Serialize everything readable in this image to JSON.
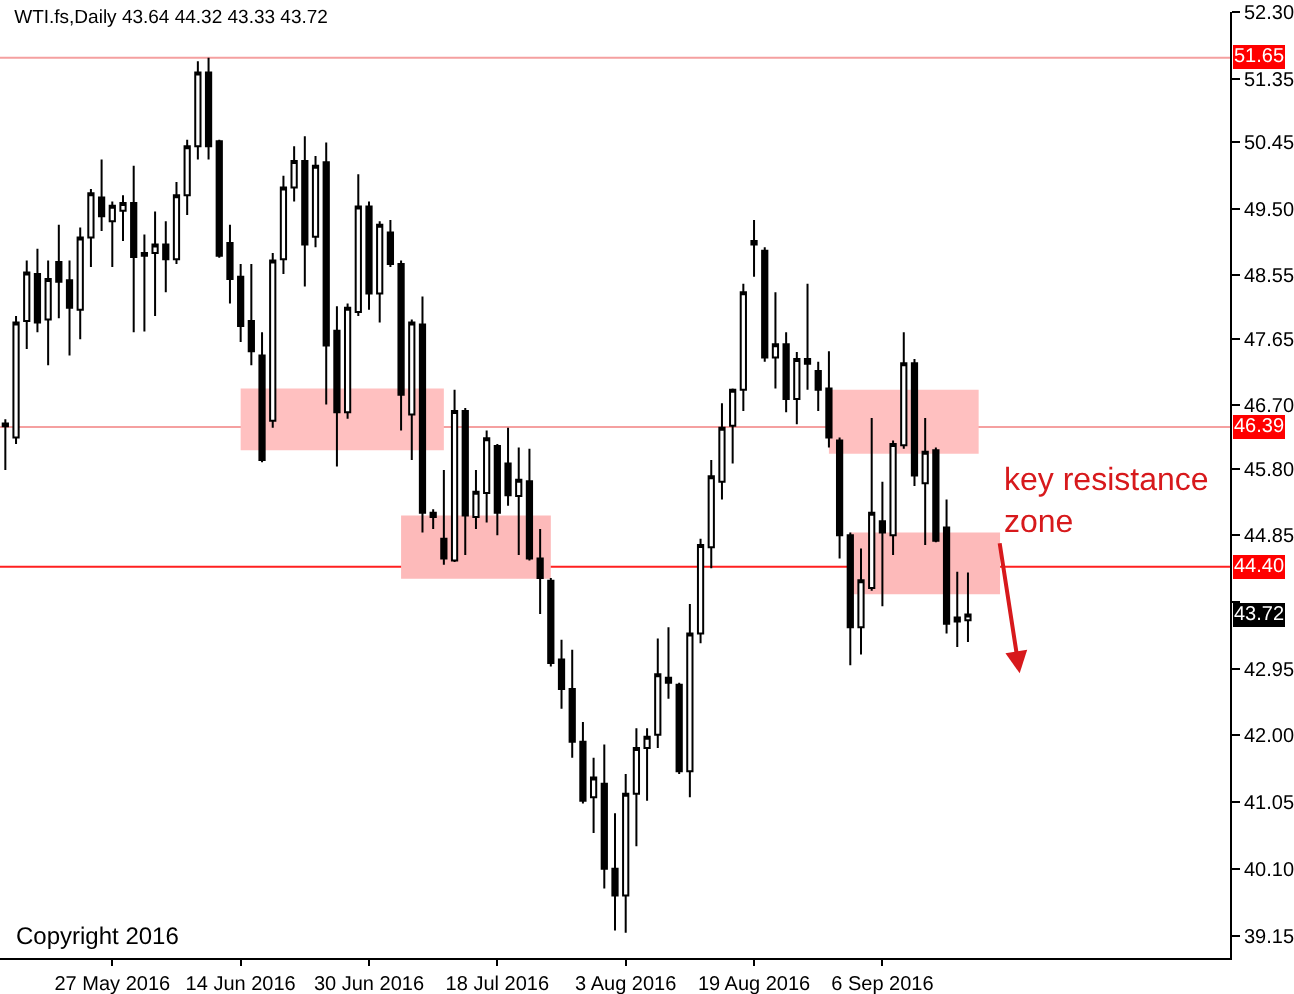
{
  "chart_data": {
    "type": "candlestick",
    "title": "WTI.fs,Daily 43.64 44.32 43.33 43.72",
    "categories": [
      null,
      null,
      null,
      null,
      null,
      null,
      null,
      null,
      null,
      null,
      "27 May 2016",
      null,
      null,
      null,
      null,
      null,
      null,
      null,
      null,
      null,
      null,
      null,
      "14 Jun 2016",
      null,
      null,
      null,
      null,
      null,
      null,
      null,
      null,
      null,
      null,
      null,
      "30 Jun 2016",
      null,
      null,
      null,
      null,
      null,
      null,
      null,
      null,
      null,
      null,
      null,
      "18 Jul 2016",
      null,
      null,
      null,
      null,
      null,
      null,
      null,
      null,
      null,
      null,
      null,
      "3 Aug 2016",
      null,
      null,
      null,
      null,
      null,
      null,
      null,
      null,
      null,
      null,
      null,
      "19 Aug 2016",
      null,
      null,
      null,
      null,
      null,
      null,
      null,
      null,
      null,
      null,
      null,
      "6 Sep 2016",
      null,
      null,
      null,
      null,
      null,
      null,
      null,
      null,
      null,
      null,
      null,
      null,
      null,
      null,
      null,
      null,
      null,
      null,
      null,
      null,
      null,
      null,
      null,
      null,
      null,
      null,
      null,
      null,
      null,
      null,
      null,
      null
    ],
    "ohlc": [
      [
        46.44,
        46.5,
        45.78,
        46.4
      ],
      [
        46.24,
        47.97,
        46.15,
        47.88
      ],
      [
        47.9,
        48.76,
        47.5,
        48.59
      ],
      [
        48.57,
        48.93,
        47.74,
        47.88
      ],
      [
        47.92,
        48.76,
        47.27,
        48.5
      ],
      [
        48.74,
        49.27,
        47.94,
        48.46
      ],
      [
        48.48,
        48.76,
        47.41,
        48.09
      ],
      [
        48.06,
        49.23,
        47.64,
        49.09
      ],
      [
        49.09,
        49.78,
        48.67,
        49.72
      ],
      [
        49.66,
        50.2,
        49.18,
        49.39
      ],
      [
        49.32,
        49.6,
        48.67,
        49.54
      ],
      [
        49.47,
        49.69,
        49.04,
        49.58
      ],
      [
        49.58,
        50.11,
        47.74,
        48.81
      ],
      [
        48.83,
        49.13,
        47.75,
        48.87
      ],
      [
        48.87,
        49.46,
        47.97,
        48.99
      ],
      [
        48.99,
        49.32,
        48.31,
        48.78
      ],
      [
        48.78,
        49.88,
        48.71,
        49.69
      ],
      [
        49.69,
        50.48,
        49.41,
        50.39
      ],
      [
        50.39,
        51.6,
        50.2,
        51.44
      ],
      [
        51.44,
        51.65,
        50.2,
        50.39
      ],
      [
        50.46,
        50.48,
        48.8,
        48.83
      ],
      [
        49.01,
        49.27,
        48.15,
        48.5
      ],
      [
        48.53,
        48.71,
        47.6,
        47.83
      ],
      [
        47.9,
        48.71,
        47.27,
        47.47
      ],
      [
        47.41,
        47.74,
        45.89,
        45.92
      ],
      [
        46.48,
        48.87,
        46.38,
        48.76
      ],
      [
        48.78,
        49.97,
        48.57,
        49.8
      ],
      [
        49.8,
        50.39,
        49.6,
        50.18
      ],
      [
        50.18,
        50.53,
        48.39,
        48.99
      ],
      [
        49.1,
        50.25,
        48.95,
        50.11
      ],
      [
        50.16,
        50.44,
        46.71,
        47.55
      ],
      [
        47.76,
        48.11,
        45.83,
        46.6
      ],
      [
        46.6,
        48.15,
        46.51,
        48.09
      ],
      [
        48.03,
        49.99,
        47.97,
        49.53
      ],
      [
        49.53,
        49.6,
        48.06,
        48.29
      ],
      [
        48.29,
        49.32,
        47.88,
        49.27
      ],
      [
        49.16,
        49.34,
        48.67,
        48.71
      ],
      [
        48.71,
        48.76,
        46.34,
        46.85
      ],
      [
        46.57,
        47.92,
        45.92,
        47.88
      ],
      [
        47.85,
        48.25,
        44.89,
        45.17
      ],
      [
        45.17,
        45.22,
        44.94,
        45.11
      ],
      [
        44.8,
        45.78,
        44.43,
        44.52
      ],
      [
        44.49,
        46.92,
        44.47,
        46.62
      ],
      [
        46.62,
        46.66,
        44.57,
        45.13
      ],
      [
        45.11,
        45.78,
        44.94,
        45.47
      ],
      [
        45.45,
        46.34,
        45.03,
        46.23
      ],
      [
        46.12,
        46.15,
        44.85,
        45.17
      ],
      [
        45.87,
        46.38,
        45.27,
        45.42
      ],
      [
        45.41,
        46.1,
        44.57,
        45.64
      ],
      [
        45.62,
        46.08,
        44.49,
        44.52
      ],
      [
        44.52,
        44.94,
        43.73,
        44.24
      ],
      [
        44.2,
        44.24,
        42.98,
        43.03
      ],
      [
        43.08,
        43.36,
        42.38,
        42.66
      ],
      [
        42.66,
        43.22,
        41.68,
        41.91
      ],
      [
        41.91,
        42.19,
        41.03,
        41.07
      ],
      [
        41.12,
        41.68,
        40.61,
        41.4
      ],
      [
        41.31,
        41.87,
        39.82,
        40.1
      ],
      [
        40.1,
        40.89,
        39.22,
        39.72
      ],
      [
        39.72,
        41.45,
        39.19,
        41.17
      ],
      [
        41.17,
        42.1,
        40.42,
        41.82
      ],
      [
        41.82,
        42.1,
        41.07,
        41.98
      ],
      [
        42.01,
        43.38,
        41.82,
        42.87
      ],
      [
        42.82,
        43.54,
        42.52,
        42.75
      ],
      [
        42.72,
        42.75,
        41.45,
        41.49
      ],
      [
        41.49,
        43.87,
        41.12,
        43.45
      ],
      [
        43.45,
        44.8,
        43.31,
        44.71
      ],
      [
        44.68,
        45.92,
        44.38,
        45.69
      ],
      [
        45.61,
        46.73,
        45.36,
        46.38
      ],
      [
        46.41,
        46.94,
        45.87,
        46.92
      ],
      [
        46.92,
        48.43,
        46.62,
        48.31
      ],
      [
        48.99,
        49.34,
        48.53,
        49.04
      ],
      [
        48.9,
        48.95,
        47.32,
        47.38
      ],
      [
        47.38,
        48.31,
        46.94,
        47.57
      ],
      [
        47.57,
        47.74,
        46.6,
        46.79
      ],
      [
        46.79,
        47.46,
        46.43,
        47.36
      ],
      [
        47.36,
        48.43,
        46.92,
        47.29
      ],
      [
        47.19,
        47.32,
        46.62,
        46.92
      ],
      [
        46.94,
        47.47,
        46.1,
        46.24
      ],
      [
        46.2,
        46.24,
        44.52,
        44.85
      ],
      [
        44.85,
        44.89,
        43.0,
        43.54
      ],
      [
        43.54,
        44.66,
        43.15,
        44.21
      ],
      [
        44.1,
        46.52,
        44.06,
        45.17
      ],
      [
        45.05,
        45.61,
        43.84,
        44.89
      ],
      [
        44.85,
        46.2,
        44.57,
        46.15
      ],
      [
        46.13,
        47.74,
        46.08,
        47.3
      ],
      [
        47.3,
        47.36,
        45.55,
        45.7
      ],
      [
        45.59,
        46.52,
        44.71,
        46.04
      ],
      [
        46.06,
        46.1,
        44.75,
        44.77
      ],
      [
        44.96,
        45.36,
        43.45,
        43.59
      ],
      [
        43.62,
        44.33,
        43.26,
        43.68
      ],
      [
        43.64,
        44.32,
        43.33,
        43.72
      ],
      null,
      null,
      null,
      null,
      null,
      null,
      null,
      null,
      null,
      null,
      null,
      null,
      null,
      null,
      null,
      null,
      null,
      null,
      null,
      null,
      null,
      null,
      null,
      null
    ],
    "series": [
      {
        "type": "line",
        "color": "#ffc0c0",
        "values": [
          null,
          null,
          null,
          null,
          null,
          null,
          null,
          null,
          null,
          null,
          null,
          null,
          null,
          null,
          null,
          null,
          null,
          null,
          null,
          null,
          null,
          null,
          null,
          null,
          null,
          null,
          null,
          null,
          null,
          null,
          null,
          null,
          null,
          null,
          null,
          null,
          null,
          null,
          null,
          null,
          null,
          null,
          null,
          null,
          null,
          null,
          null,
          null,
          null,
          null,
          null,
          null,
          null,
          null,
          null,
          null,
          null,
          null,
          null,
          null,
          null,
          null,
          null,
          null,
          null,
          null,
          null,
          null,
          null,
          null,
          null,
          null,
          null,
          null,
          null,
          null,
          null,
          null,
          null,
          null,
          null,
          null,
          null,
          null,
          null,
          null,
          null,
          null,
          null,
          null,
          null,
          null,
          null,
          null,
          null,
          null,
          null,
          null,
          null,
          null,
          null,
          null,
          null,
          null,
          null,
          null,
          null,
          null,
          null,
          null,
          null,
          null,
          null,
          null,
          null
        ],
        "lower": [
          null,
          null,
          null,
          null,
          null,
          null,
          null,
          null,
          null,
          null,
          null,
          null,
          null,
          null,
          null,
          null,
          null,
          null,
          null,
          null,
          null,
          null,
          46.06,
          46.06,
          46.06,
          46.06,
          46.06,
          46.06,
          46.06,
          46.06,
          46.06,
          46.06,
          46.06,
          46.06,
          46.06,
          46.06,
          46.06,
          46.06,
          46.06,
          46.06,
          46.06,
          46.06,
          null,
          null,
          null,
          null,
          null,
          null,
          null,
          null,
          null,
          null,
          null,
          null,
          null,
          null,
          null,
          null,
          null,
          null,
          null,
          null,
          null,
          null,
          null,
          null,
          null,
          null,
          null,
          null,
          null,
          null,
          null,
          null,
          null,
          null,
          null,
          null,
          null,
          null,
          null,
          null,
          null,
          null,
          null,
          null,
          null,
          null,
          null,
          null,
          null,
          null,
          null,
          null,
          null,
          null,
          null,
          null,
          null,
          null,
          null,
          null,
          null,
          null,
          null,
          null,
          null,
          null,
          null,
          null,
          null,
          null,
          null,
          null,
          null
        ],
        "upper": [
          null,
          null,
          null,
          null,
          null,
          null,
          null,
          null,
          null,
          null,
          null,
          null,
          null,
          null,
          null,
          null,
          null,
          null,
          null,
          null,
          null,
          null,
          46.94,
          46.94,
          46.94,
          46.94,
          46.94,
          46.94,
          46.94,
          46.94,
          46.94,
          46.94,
          46.94,
          46.94,
          46.94,
          46.94,
          46.94,
          46.94,
          46.94,
          46.94,
          46.94,
          46.94,
          null,
          null,
          null,
          null,
          null,
          null,
          null,
          null,
          null,
          null,
          null,
          null,
          null,
          null,
          null,
          null,
          null,
          null,
          null,
          null,
          null,
          null,
          null,
          null,
          null,
          null,
          null,
          null,
          null,
          null,
          null,
          null,
          null,
          null,
          null,
          null,
          null,
          null,
          null,
          null,
          null,
          null,
          null,
          null,
          null,
          null,
          null,
          null,
          null,
          null,
          null,
          null,
          null,
          null,
          null,
          null,
          null,
          null,
          null,
          null,
          null,
          null,
          null,
          null,
          null,
          null,
          null,
          null,
          null,
          null,
          null,
          null,
          null
        ]
      },
      {
        "type": "line",
        "color": "#ffc0c0",
        "values": [
          null,
          null,
          null,
          null,
          null,
          null,
          null,
          null,
          null,
          null,
          null,
          null,
          null,
          null,
          null,
          null,
          null,
          null,
          null,
          null,
          null,
          null,
          null,
          null,
          null,
          null,
          null,
          null,
          null,
          null,
          null,
          null,
          null,
          null,
          null,
          null,
          null,
          null,
          null,
          null,
          null,
          null,
          null,
          null,
          null,
          null,
          null,
          null,
          null,
          null,
          null,
          null,
          null,
          null,
          null,
          null,
          null,
          null,
          null,
          null,
          null,
          null,
          null,
          null,
          null,
          null,
          null,
          null,
          null,
          null,
          null,
          null,
          null,
          null,
          null,
          null,
          null,
          null,
          null,
          null,
          null,
          null,
          null,
          null,
          null,
          null,
          null,
          null,
          null,
          null,
          null,
          null,
          null,
          null,
          null,
          null,
          null,
          null,
          null,
          null,
          null,
          null,
          null,
          null,
          null,
          null,
          null,
          null,
          null,
          null,
          null,
          null,
          null,
          null,
          null
        ],
        "lower": [
          null,
          null,
          null,
          null,
          null,
          null,
          null,
          null,
          null,
          null,
          null,
          null,
          null,
          null,
          null,
          null,
          null,
          null,
          null,
          null,
          null,
          null,
          null,
          null,
          null,
          null,
          null,
          null,
          null,
          null,
          null,
          null,
          null,
          null,
          null,
          null,
          null,
          null,
          null,
          null,
          null,
          null,
          null,
          null,
          null,
          null,
          null,
          null,
          null,
          null,
          null,
          null,
          null,
          null,
          null,
          null,
          null,
          null,
          null,
          null,
          null,
          null,
          null,
          null,
          null,
          null,
          null,
          null,
          null,
          null,
          null,
          null,
          null,
          null,
          null,
          null,
          null,
          46.01,
          46.01,
          46.01,
          46.01,
          46.01,
          46.01,
          46.01,
          46.01,
          46.01,
          46.01,
          46.01,
          46.01,
          46.01,
          46.01,
          46.01,
          null,
          null,
          null,
          null,
          null,
          null,
          null,
          null,
          null,
          null,
          null,
          null,
          null,
          null,
          null,
          null,
          null,
          null,
          null,
          null,
          null,
          null,
          null
        ],
        "upper": [
          null,
          null,
          null,
          null,
          null,
          null,
          null,
          null,
          null,
          null,
          null,
          null,
          null,
          null,
          null,
          null,
          null,
          null,
          null,
          null,
          null,
          null,
          null,
          null,
          null,
          null,
          null,
          null,
          null,
          null,
          null,
          null,
          null,
          null,
          null,
          null,
          null,
          null,
          null,
          null,
          null,
          null,
          null,
          null,
          null,
          null,
          null,
          null,
          null,
          null,
          null,
          null,
          null,
          null,
          null,
          null,
          null,
          null,
          null,
          null,
          null,
          null,
          null,
          null,
          null,
          null,
          null,
          null,
          null,
          null,
          null,
          null,
          null,
          null,
          null,
          null,
          null,
          46.92,
          46.92,
          46.92,
          46.92,
          46.92,
          46.92,
          46.92,
          46.92,
          46.92,
          46.92,
          46.92,
          46.92,
          46.92,
          46.92,
          46.92,
          null,
          null,
          null,
          null,
          null,
          null,
          null,
          null,
          null,
          null,
          null,
          null,
          null,
          null,
          null,
          null,
          null,
          null,
          null,
          null,
          null,
          null,
          null
        ]
      },
      {
        "type": "line",
        "color": "#fdbaba",
        "values": [
          null,
          null,
          null,
          null,
          null,
          null,
          null,
          null,
          null,
          null,
          null,
          null,
          null,
          null,
          null,
          null,
          null,
          null,
          null,
          null,
          null,
          null,
          null,
          null,
          null,
          null,
          null,
          null,
          null,
          null,
          null,
          null,
          null,
          null,
          null,
          null,
          null,
          null,
          null,
          null,
          null,
          null,
          null,
          null,
          null,
          null,
          null,
          null,
          null,
          null,
          null,
          null,
          null,
          null,
          null,
          null,
          null,
          null,
          null,
          null,
          null,
          null,
          null,
          null,
          null,
          null,
          null,
          null,
          null,
          null,
          null,
          null,
          null,
          null,
          null,
          null,
          null,
          null,
          null,
          null,
          null,
          null,
          null,
          null,
          null,
          null,
          null,
          null,
          null,
          null,
          null,
          null,
          null,
          null,
          null,
          null,
          null,
          null,
          null,
          null,
          null,
          null,
          null,
          null,
          null,
          null,
          null,
          null,
          null,
          null,
          null,
          null,
          null,
          null,
          null
        ],
        "lower": [
          null,
          null,
          null,
          null,
          null,
          null,
          null,
          null,
          null,
          null,
          null,
          null,
          null,
          null,
          null,
          null,
          null,
          null,
          null,
          null,
          null,
          null,
          null,
          null,
          null,
          null,
          null,
          null,
          null,
          null,
          null,
          null,
          null,
          null,
          null,
          null,
          null,
          44.23,
          44.23,
          44.23,
          44.23,
          44.23,
          44.23,
          44.23,
          44.23,
          44.23,
          44.23,
          44.23,
          44.23,
          44.23,
          44.23,
          44.23,
          null,
          null,
          null,
          null,
          null,
          null,
          null,
          null,
          null,
          null,
          null,
          null,
          null,
          null,
          null,
          null,
          null,
          null,
          null,
          null,
          null,
          null,
          null,
          null,
          null,
          null,
          null,
          null,
          null,
          null,
          null,
          null,
          null,
          null,
          null,
          null,
          null,
          null,
          null,
          null,
          null,
          null,
          null,
          null,
          null,
          null,
          null,
          null,
          null,
          null,
          null,
          null,
          null,
          null,
          null,
          null,
          null,
          null,
          null,
          null,
          null,
          null,
          null
        ],
        "upper": [
          null,
          null,
          null,
          null,
          null,
          null,
          null,
          null,
          null,
          null,
          null,
          null,
          null,
          null,
          null,
          null,
          null,
          null,
          null,
          null,
          null,
          null,
          null,
          null,
          null,
          null,
          null,
          null,
          null,
          null,
          null,
          null,
          null,
          null,
          null,
          null,
          null,
          45.13,
          45.13,
          45.13,
          45.13,
          45.13,
          45.13,
          45.13,
          45.13,
          45.13,
          45.13,
          45.13,
          45.13,
          45.13,
          45.13,
          45.13,
          null,
          null,
          null,
          null,
          null,
          null,
          null,
          null,
          null,
          null,
          null,
          null,
          null,
          null,
          null,
          null,
          null,
          null,
          null,
          null,
          null,
          null,
          null,
          null,
          null,
          null,
          null,
          null,
          null,
          null,
          null,
          null,
          null,
          null,
          null,
          null,
          null,
          null,
          null,
          null,
          null,
          null,
          null,
          null,
          null,
          null,
          null,
          null,
          null,
          null,
          null,
          null,
          null,
          null,
          null,
          null,
          null,
          null,
          null,
          null,
          null,
          null,
          null
        ]
      },
      {
        "type": "line",
        "color": "#fdbaba",
        "values": [
          null,
          null,
          null,
          null,
          null,
          null,
          null,
          null,
          null,
          null,
          null,
          null,
          null,
          null,
          null,
          null,
          null,
          null,
          null,
          null,
          null,
          null,
          null,
          null,
          null,
          null,
          null,
          null,
          null,
          null,
          null,
          null,
          null,
          null,
          null,
          null,
          null,
          null,
          null,
          null,
          null,
          null,
          null,
          null,
          null,
          null,
          null,
          null,
          null,
          null,
          null,
          null,
          null,
          null,
          null,
          null,
          null,
          null,
          null,
          null,
          null,
          null,
          null,
          null,
          null,
          null,
          null,
          null,
          null,
          null,
          null,
          null,
          null,
          null,
          null,
          null,
          null,
          null,
          null,
          null,
          null,
          null,
          null,
          null,
          null,
          null,
          null,
          null,
          null,
          null,
          null,
          null,
          null,
          null,
          null,
          null,
          null,
          null,
          null,
          null,
          null,
          null,
          null,
          null,
          null,
          null,
          null,
          null,
          null,
          null,
          null,
          null,
          null,
          null,
          null
        ],
        "lower": [
          null,
          null,
          null,
          null,
          null,
          null,
          null,
          null,
          null,
          null,
          null,
          null,
          null,
          null,
          null,
          null,
          null,
          null,
          null,
          null,
          null,
          null,
          null,
          null,
          null,
          null,
          null,
          null,
          null,
          null,
          null,
          null,
          null,
          null,
          null,
          null,
          null,
          null,
          null,
          null,
          null,
          null,
          null,
          null,
          null,
          null,
          null,
          null,
          null,
          null,
          null,
          null,
          null,
          null,
          null,
          null,
          null,
          null,
          null,
          null,
          null,
          null,
          null,
          null,
          null,
          null,
          null,
          null,
          null,
          null,
          null,
          null,
          null,
          null,
          null,
          null,
          null,
          null,
          null,
          44.01,
          44.01,
          44.01,
          44.01,
          44.01,
          44.01,
          44.01,
          44.01,
          44.01,
          44.01,
          44.01,
          44.01,
          44.01,
          44.01,
          44.01,
          null,
          null,
          null,
          null,
          null,
          null,
          null,
          null,
          null,
          null,
          null,
          null,
          null,
          null,
          null,
          null,
          null,
          null,
          null,
          null,
          null
        ],
        "upper": [
          null,
          null,
          null,
          null,
          null,
          null,
          null,
          null,
          null,
          null,
          null,
          null,
          null,
          null,
          null,
          null,
          null,
          null,
          null,
          null,
          null,
          null,
          null,
          null,
          null,
          null,
          null,
          null,
          null,
          null,
          null,
          null,
          null,
          null,
          null,
          null,
          null,
          null,
          null,
          null,
          null,
          null,
          null,
          null,
          null,
          null,
          null,
          null,
          null,
          null,
          null,
          null,
          null,
          null,
          null,
          null,
          null,
          null,
          null,
          null,
          null,
          null,
          null,
          null,
          null,
          null,
          null,
          null,
          null,
          null,
          null,
          null,
          null,
          null,
          null,
          null,
          null,
          null,
          null,
          44.89,
          44.89,
          44.89,
          44.89,
          44.89,
          44.89,
          44.89,
          44.89,
          44.89,
          44.89,
          44.89,
          44.89,
          44.89,
          44.89,
          44.89,
          null,
          null,
          null,
          null,
          null,
          null,
          null,
          null,
          null,
          null,
          null,
          null,
          null,
          null,
          null,
          null,
          null,
          null,
          null,
          null,
          null
        ]
      }
    ],
    "ylim": [
      38.83,
      52.3
    ],
    "yticks": [
      {
        "value": 52.3,
        "label": "52.30"
      },
      51.35,
      50.45,
      {
        "value": 49.5,
        "label": "49.50"
      },
      48.55,
      47.65,
      {
        "value": 46.7,
        "label": "46.70"
      },
      {
        "value": 45.8,
        "label": "45.80"
      },
      44.85,
      {
        "value": 43.9,
        "label": null
      },
      42.95,
      {
        "value": 42.0,
        "label": "42.00"
      },
      41.05,
      {
        "value": 40.1,
        "label": "40.10"
      },
      39.15
    ],
    "ref_lines": [
      {
        "axis": "y",
        "value": 51.65,
        "label": "51.65",
        "color": "#f5a0a0"
      },
      {
        "axis": "y",
        "value": 46.39,
        "label": "46.39",
        "color": "#f5a0a0"
      },
      {
        "axis": "y",
        "value": 44.4,
        "label": "44.40",
        "color": "#ff2020"
      }
    ],
    "annotations": [
      "key resistance\nzone",
      {
        "text": "43.72",
        "y": 43.72
      },
      "Copyright 2016"
    ]
  }
}
